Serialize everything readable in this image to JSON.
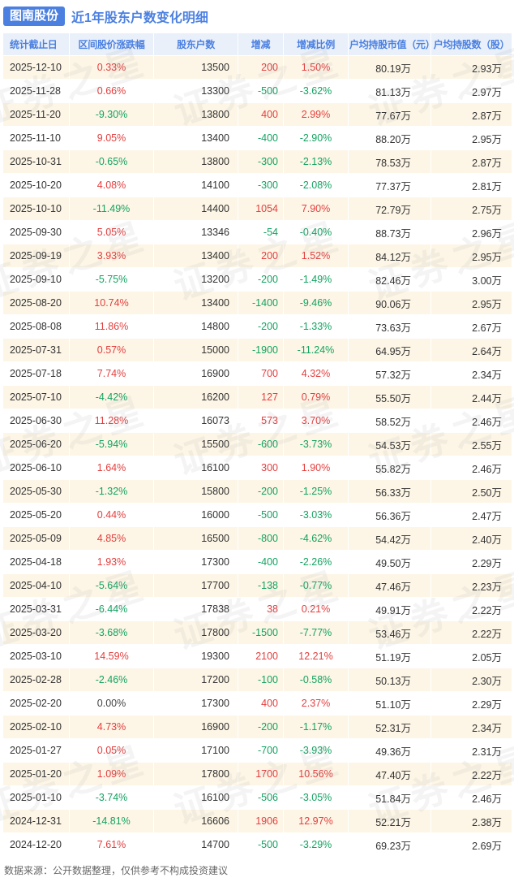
{
  "title": {
    "badge": "图南股份",
    "text": "近1年股东户数变化明细"
  },
  "footer": "数据来源：公开数据整理，仅供参考不构成投资建议",
  "watermark": "证券之星",
  "colors": {
    "accent": "#4b80e1",
    "header_bg": "#e9f0fa",
    "header_text": "#4b80e1",
    "stripe_bg": "#fdf6e6",
    "up": "#e53e3e",
    "down": "#13a361"
  },
  "chart_data": {
    "type": "table",
    "title": "图南股份 近1年股东户数变化明细",
    "columns": [
      "统计截止日",
      "区间股价涨跌幅",
      "股东户数",
      "增减",
      "增减比例",
      "户均持股市值（元）",
      "户均持股数（股）"
    ],
    "rows": [
      [
        "2025-12-10",
        "0.33%",
        "13500",
        "200",
        "1.50%",
        "80.19万",
        "2.93万"
      ],
      [
        "2025-11-28",
        "0.66%",
        "13300",
        "-500",
        "-3.62%",
        "81.13万",
        "2.97万"
      ],
      [
        "2025-11-20",
        "-9.30%",
        "13800",
        "400",
        "2.99%",
        "77.67万",
        "2.87万"
      ],
      [
        "2025-11-10",
        "9.05%",
        "13400",
        "-400",
        "-2.90%",
        "88.20万",
        "2.95万"
      ],
      [
        "2025-10-31",
        "-0.65%",
        "13800",
        "-300",
        "-2.13%",
        "78.53万",
        "2.87万"
      ],
      [
        "2025-10-20",
        "4.08%",
        "14100",
        "-300",
        "-2.08%",
        "77.37万",
        "2.81万"
      ],
      [
        "2025-10-10",
        "-11.49%",
        "14400",
        "1054",
        "7.90%",
        "72.79万",
        "2.75万"
      ],
      [
        "2025-09-30",
        "5.05%",
        "13346",
        "-54",
        "-0.40%",
        "88.73万",
        "2.96万"
      ],
      [
        "2025-09-19",
        "3.93%",
        "13400",
        "200",
        "1.52%",
        "84.12万",
        "2.95万"
      ],
      [
        "2025-09-10",
        "-5.75%",
        "13200",
        "-200",
        "-1.49%",
        "82.46万",
        "3.00万"
      ],
      [
        "2025-08-20",
        "10.74%",
        "13400",
        "-1400",
        "-9.46%",
        "90.06万",
        "2.95万"
      ],
      [
        "2025-08-08",
        "11.86%",
        "14800",
        "-200",
        "-1.33%",
        "73.63万",
        "2.67万"
      ],
      [
        "2025-07-31",
        "0.57%",
        "15000",
        "-1900",
        "-11.24%",
        "64.95万",
        "2.64万"
      ],
      [
        "2025-07-18",
        "7.74%",
        "16900",
        "700",
        "4.32%",
        "57.32万",
        "2.34万"
      ],
      [
        "2025-07-10",
        "-4.42%",
        "16200",
        "127",
        "0.79%",
        "55.50万",
        "2.44万"
      ],
      [
        "2025-06-30",
        "11.28%",
        "16073",
        "573",
        "3.70%",
        "58.52万",
        "2.46万"
      ],
      [
        "2025-06-20",
        "-5.94%",
        "15500",
        "-600",
        "-3.73%",
        "54.53万",
        "2.55万"
      ],
      [
        "2025-06-10",
        "1.64%",
        "16100",
        "300",
        "1.90%",
        "55.82万",
        "2.46万"
      ],
      [
        "2025-05-30",
        "-1.32%",
        "15800",
        "-200",
        "-1.25%",
        "56.33万",
        "2.50万"
      ],
      [
        "2025-05-20",
        "0.44%",
        "16000",
        "-500",
        "-3.03%",
        "56.36万",
        "2.47万"
      ],
      [
        "2025-05-09",
        "4.85%",
        "16500",
        "-800",
        "-4.62%",
        "54.42万",
        "2.40万"
      ],
      [
        "2025-04-18",
        "1.93%",
        "17300",
        "-400",
        "-2.26%",
        "49.50万",
        "2.29万"
      ],
      [
        "2025-04-10",
        "-5.64%",
        "17700",
        "-138",
        "-0.77%",
        "47.46万",
        "2.23万"
      ],
      [
        "2025-03-31",
        "-6.44%",
        "17838",
        "38",
        "0.21%",
        "49.91万",
        "2.22万"
      ],
      [
        "2025-03-20",
        "-3.68%",
        "17800",
        "-1500",
        "-7.77%",
        "53.46万",
        "2.22万"
      ],
      [
        "2025-03-10",
        "14.59%",
        "19300",
        "2100",
        "12.21%",
        "51.19万",
        "2.05万"
      ],
      [
        "2025-02-28",
        "-2.46%",
        "17200",
        "-100",
        "-0.58%",
        "50.13万",
        "2.30万"
      ],
      [
        "2025-02-20",
        "0.00%",
        "17300",
        "400",
        "2.37%",
        "51.10万",
        "2.29万"
      ],
      [
        "2025-02-10",
        "4.73%",
        "16900",
        "-200",
        "-1.17%",
        "52.31万",
        "2.34万"
      ],
      [
        "2025-01-27",
        "0.05%",
        "17100",
        "-700",
        "-3.93%",
        "49.36万",
        "2.31万"
      ],
      [
        "2025-01-20",
        "1.09%",
        "17800",
        "1700",
        "10.56%",
        "47.40万",
        "2.22万"
      ],
      [
        "2025-01-10",
        "-3.74%",
        "16100",
        "-506",
        "-3.05%",
        "51.84万",
        "2.46万"
      ],
      [
        "2024-12-31",
        "-14.81%",
        "16606",
        "1906",
        "12.97%",
        "52.21万",
        "2.38万"
      ],
      [
        "2024-12-20",
        "7.61%",
        "14700",
        "-500",
        "-3.29%",
        "69.23万",
        "2.69万"
      ]
    ]
  }
}
